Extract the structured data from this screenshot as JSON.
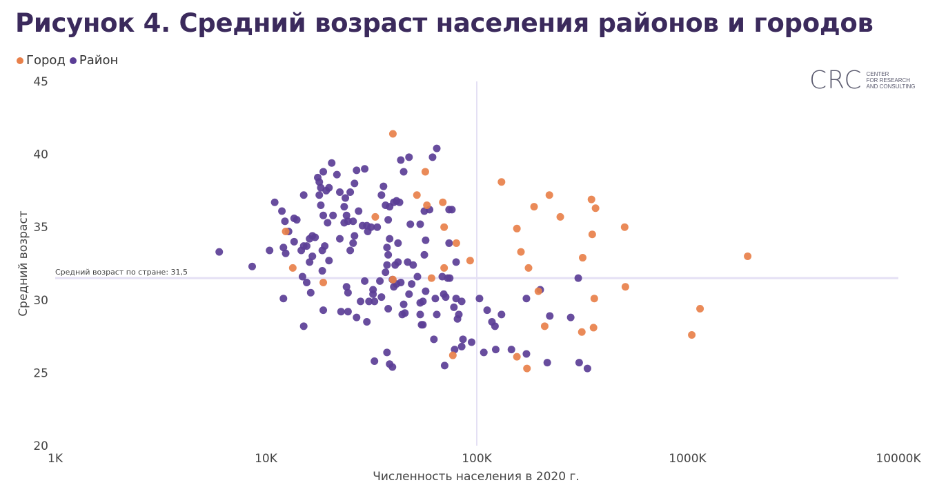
{
  "chart_data": {
    "type": "scatter",
    "title": "Рисунок 4. Средний возраст населения районов и городов",
    "xlabel": "Численность населения в 2020 г.",
    "ylabel": "Средний возраст",
    "x_scale": "log",
    "x_units": "thousands",
    "xlim": [
      1,
      10000
    ],
    "ylim": [
      20,
      45
    ],
    "x_ticks": [
      1,
      10,
      100,
      1000,
      10000
    ],
    "x_tick_labels": [
      "1K",
      "10K",
      "100K",
      "1000K",
      "10000K"
    ],
    "y_ticks": [
      20,
      25,
      30,
      35,
      40,
      45
    ],
    "y_tick_labels": [
      "20",
      "25",
      "30",
      "35",
      "40",
      "45"
    ],
    "legend_position": "top-left",
    "reference_lines": {
      "horizontal": {
        "value": 31.5,
        "label": "Средний возраст по стране: 31,5"
      },
      "vertical": {
        "value": 100
      }
    },
    "series": [
      {
        "name": "Город",
        "color": "#E8804A",
        "points": [
          [
            40,
            41.4
          ],
          [
            57,
            38.8
          ],
          [
            52,
            37.2
          ],
          [
            69,
            36.7
          ],
          [
            33,
            35.7
          ],
          [
            70,
            35.0
          ],
          [
            80,
            33.9
          ],
          [
            12.4,
            34.7
          ],
          [
            13.4,
            32.2
          ],
          [
            40,
            31.4
          ],
          [
            18.7,
            31.2
          ],
          [
            61,
            31.5
          ],
          [
            93,
            32.7
          ],
          [
            70,
            32.2
          ],
          [
            58,
            36.5
          ],
          [
            131,
            38.1
          ],
          [
            187,
            36.4
          ],
          [
            221,
            37.2
          ],
          [
            155,
            34.9
          ],
          [
            350,
            36.9
          ],
          [
            366,
            36.3
          ],
          [
            249,
            35.7
          ],
          [
            503,
            35.0
          ],
          [
            162,
            33.3
          ],
          [
            176,
            32.2
          ],
          [
            353,
            34.5
          ],
          [
            318,
            32.9
          ],
          [
            1928,
            33.0
          ],
          [
            196,
            30.6
          ],
          [
            507,
            30.9
          ],
          [
            361,
            30.1
          ],
          [
            210,
            28.2
          ],
          [
            1146,
            29.4
          ],
          [
            358,
            28.1
          ],
          [
            315,
            27.8
          ],
          [
            1047,
            27.6
          ],
          [
            155,
            26.1
          ],
          [
            77,
            26.2
          ],
          [
            173,
            25.3
          ]
        ]
      },
      {
        "name": "Район",
        "color": "#5B3E96",
        "points": [
          [
            6.0,
            33.3
          ],
          [
            8.6,
            32.3
          ],
          [
            10.4,
            33.4
          ],
          [
            11.0,
            36.7
          ],
          [
            11.9,
            36.1
          ],
          [
            12.3,
            35.4
          ],
          [
            12.1,
            33.6
          ],
          [
            12.4,
            33.2
          ],
          [
            12.8,
            34.7
          ],
          [
            13.6,
            35.6
          ],
          [
            14.0,
            35.5
          ],
          [
            13.6,
            34.0
          ],
          [
            14.7,
            33.4
          ],
          [
            15.1,
            33.7
          ],
          [
            15.6,
            33.7
          ],
          [
            15.1,
            37.2
          ],
          [
            16.1,
            34.2
          ],
          [
            16.6,
            34.4
          ],
          [
            16.6,
            33.0
          ],
          [
            16.1,
            32.6
          ],
          [
            17.1,
            34.3
          ],
          [
            17.6,
            38.4
          ],
          [
            17.9,
            38.1
          ],
          [
            18.2,
            37.7
          ],
          [
            17.9,
            37.2
          ],
          [
            18.2,
            36.5
          ],
          [
            18.7,
            38.8
          ],
          [
            18.7,
            35.8
          ],
          [
            19.0,
            33.7
          ],
          [
            18.5,
            33.4
          ],
          [
            19.3,
            37.5
          ],
          [
            19.6,
            35.3
          ],
          [
            19.9,
            37.7
          ],
          [
            20.5,
            39.4
          ],
          [
            20.8,
            35.8
          ],
          [
            21.7,
            38.6
          ],
          [
            22.4,
            37.4
          ],
          [
            22.4,
            34.2
          ],
          [
            23.5,
            36.4
          ],
          [
            23.5,
            35.3
          ],
          [
            23.8,
            37.0
          ],
          [
            24.1,
            35.8
          ],
          [
            24.5,
            35.4
          ],
          [
            25.1,
            37.4
          ],
          [
            25.1,
            33.4
          ],
          [
            25.9,
            35.4
          ],
          [
            26.3,
            38.0
          ],
          [
            26.9,
            38.9
          ],
          [
            29.4,
            39.0
          ],
          [
            25.9,
            33.9
          ],
          [
            26.3,
            34.4
          ],
          [
            27.5,
            36.1
          ],
          [
            28.7,
            35.1
          ],
          [
            30.1,
            35.1
          ],
          [
            30.4,
            34.7
          ],
          [
            31.5,
            35.0
          ],
          [
            33.7,
            35.0
          ],
          [
            35.3,
            37.2
          ],
          [
            36.1,
            37.8
          ],
          [
            36.9,
            36.5
          ],
          [
            38.0,
            35.5
          ],
          [
            38.6,
            34.2
          ],
          [
            37.5,
            33.6
          ],
          [
            38.0,
            33.1
          ],
          [
            38.6,
            36.4
          ],
          [
            40.4,
            36.7
          ],
          [
            41.6,
            36.8
          ],
          [
            43.0,
            36.7
          ],
          [
            41.0,
            32.4
          ],
          [
            42.3,
            32.6
          ],
          [
            42.3,
            33.9
          ],
          [
            43.6,
            39.6
          ],
          [
            45.0,
            38.8
          ],
          [
            47.7,
            39.8
          ],
          [
            48.4,
            35.2
          ],
          [
            49.9,
            32.4
          ],
          [
            47.0,
            32.6
          ],
          [
            53.9,
            35.2
          ],
          [
            56.4,
            36.1
          ],
          [
            59.7,
            36.2
          ],
          [
            61.7,
            39.8
          ],
          [
            64.6,
            40.4
          ],
          [
            73.9,
            36.2
          ],
          [
            76.2,
            36.2
          ],
          [
            73.9,
            33.9
          ],
          [
            79.8,
            32.6
          ],
          [
            57.2,
            34.1
          ],
          [
            56.4,
            33.1
          ],
          [
            52.3,
            31.6
          ],
          [
            12.1,
            30.1
          ],
          [
            15.1,
            28.2
          ],
          [
            14.9,
            31.6
          ],
          [
            15.6,
            31.2
          ],
          [
            16.3,
            30.5
          ],
          [
            18.5,
            32.0
          ],
          [
            18.7,
            29.3
          ],
          [
            19.9,
            32.7
          ],
          [
            22.7,
            29.2
          ],
          [
            24.5,
            30.5
          ],
          [
            24.1,
            30.9
          ],
          [
            24.5,
            29.2
          ],
          [
            26.9,
            28.8
          ],
          [
            28.1,
            29.9
          ],
          [
            30.1,
            28.5
          ],
          [
            30.8,
            29.9
          ],
          [
            29.4,
            31.3
          ],
          [
            32.2,
            30.7
          ],
          [
            32.7,
            29.9
          ],
          [
            32.2,
            30.4
          ],
          [
            34.7,
            31.3
          ],
          [
            35.3,
            30.2
          ],
          [
            36.9,
            31.9
          ],
          [
            37.5,
            32.4
          ],
          [
            38.0,
            29.4
          ],
          [
            39.8,
            31.4
          ],
          [
            41.6,
            31.1
          ],
          [
            40.4,
            30.9
          ],
          [
            43.6,
            31.2
          ],
          [
            44.3,
            29.0
          ],
          [
            45.0,
            29.7
          ],
          [
            47.7,
            30.4
          ],
          [
            49.1,
            31.1
          ],
          [
            53.9,
            29.0
          ],
          [
            53.9,
            29.8
          ],
          [
            54.7,
            28.3
          ],
          [
            55.5,
            29.9
          ],
          [
            57.2,
            30.6
          ],
          [
            63.6,
            30.1
          ],
          [
            64.6,
            29.0
          ],
          [
            68.6,
            31.6
          ],
          [
            69.7,
            30.4
          ],
          [
            71.2,
            30.2
          ],
          [
            72.8,
            31.5
          ],
          [
            74.4,
            31.5
          ],
          [
            77.9,
            29.5
          ],
          [
            79.8,
            30.1
          ],
          [
            81.0,
            28.7
          ],
          [
            82.2,
            29.0
          ],
          [
            84.8,
            29.9
          ],
          [
            94.5,
            27.1
          ],
          [
            86.0,
            27.3
          ],
          [
            84.8,
            26.8
          ],
          [
            78.5,
            26.6
          ],
          [
            62.6,
            27.3
          ],
          [
            55.5,
            28.3
          ],
          [
            38.6,
            25.6
          ],
          [
            39.8,
            25.4
          ],
          [
            32.7,
            25.8
          ],
          [
            70.4,
            25.5
          ],
          [
            37.5,
            26.4
          ],
          [
            45.6,
            29.1
          ],
          [
            103,
            30.1
          ],
          [
            112,
            29.3
          ],
          [
            118,
            28.5
          ],
          [
            122,
            28.2
          ],
          [
            131,
            29.0
          ],
          [
            108,
            26.4
          ],
          [
            123,
            26.6
          ],
          [
            146,
            26.6
          ],
          [
            172,
            26.3
          ],
          [
            200,
            30.7
          ],
          [
            172,
            30.1
          ],
          [
            222,
            28.9
          ],
          [
            216,
            25.7
          ],
          [
            279,
            28.8
          ],
          [
            303,
            31.5
          ],
          [
            306,
            25.7
          ],
          [
            335,
            25.3
          ]
        ]
      }
    ]
  },
  "logo": {
    "mark": "CRC",
    "line1": "CENTER",
    "line2": "FOR RESEARCH",
    "line3": "AND CONSULTING"
  }
}
